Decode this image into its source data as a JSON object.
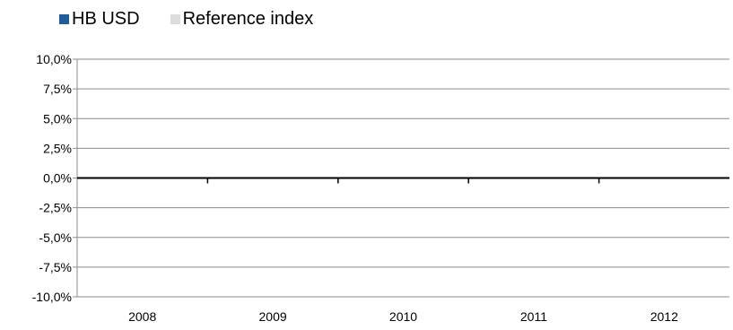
{
  "chart_data": {
    "type": "bar",
    "categories": [
      "2008",
      "2009",
      "2010",
      "2011",
      "2012"
    ],
    "series": [
      {
        "name": "HB USD",
        "color": "#1f5c99",
        "values": [
          0,
          0,
          0,
          0,
          0
        ]
      },
      {
        "name": "Reference index",
        "color": "#dcdcdc",
        "values": [
          0,
          0,
          0,
          0,
          0
        ]
      }
    ],
    "y_ticks": [
      "10,0%",
      "7,5%",
      "5,0%",
      "2,5%",
      "0,0%",
      "-2,5%",
      "-5,0%",
      "-7,5%",
      "-10,0%"
    ],
    "ylim": [
      -10,
      10
    ],
    "grid": true,
    "legend": "top-left",
    "title": "",
    "xlabel": "",
    "ylabel": ""
  }
}
